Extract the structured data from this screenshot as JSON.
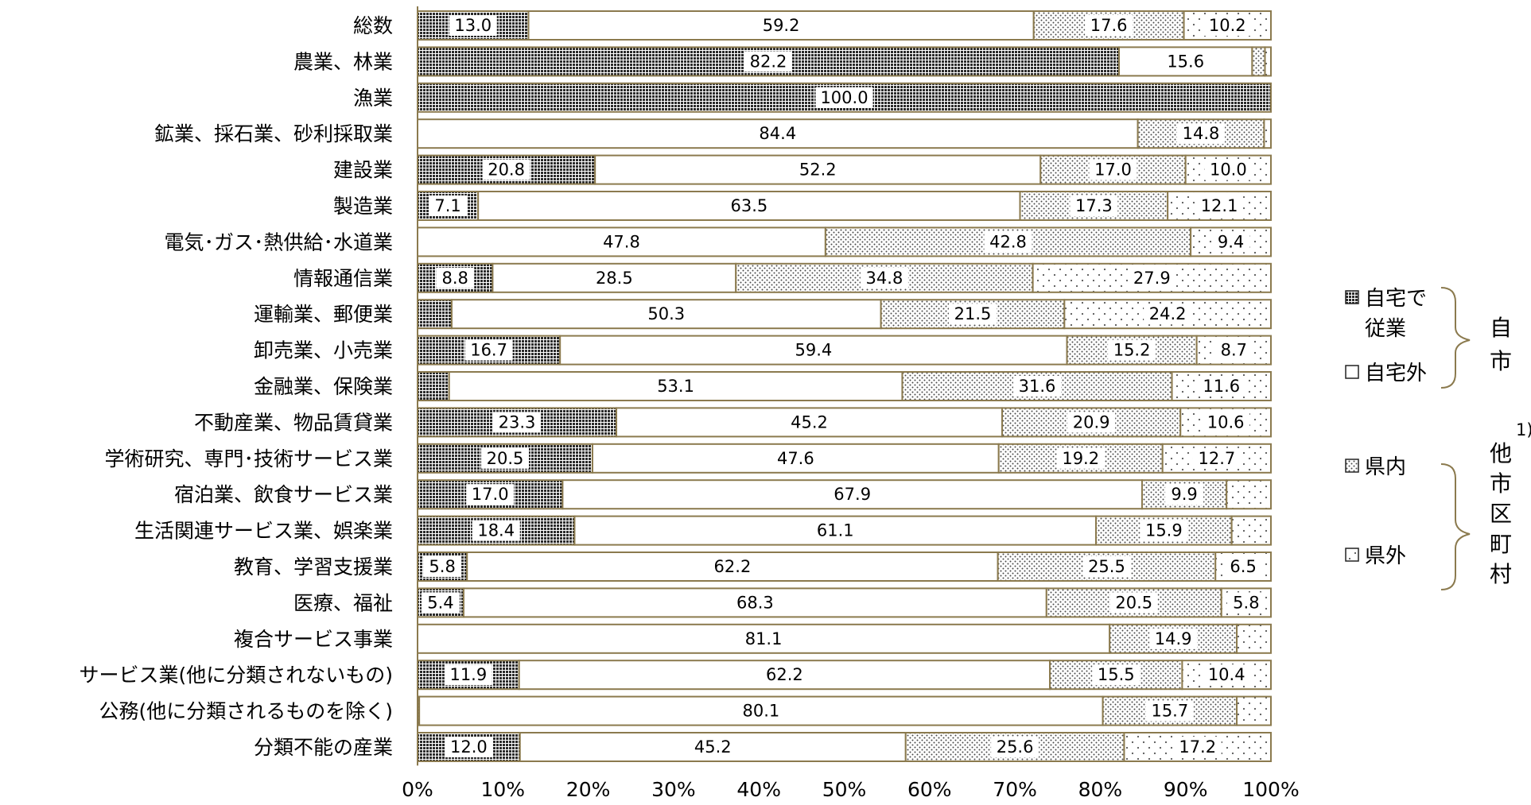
{
  "chart_data": {
    "type": "bar",
    "orientation": "horizontal",
    "stacked": "percent",
    "title": "",
    "xlabel": "",
    "ylabel": "",
    "xlim": [
      0,
      100
    ],
    "x_tick_labels": [
      "0%",
      "10%",
      "20%",
      "30%",
      "40%",
      "50%",
      "60%",
      "70%",
      "80%",
      "90%",
      "100%"
    ],
    "categories": [
      "総数",
      "農業、林業",
      "漁業",
      "鉱業、採石業、砂利採取業",
      "建設業",
      "製造業",
      "電気･ガス･熱供給･水道業",
      "情報通信業",
      "運輸業、郵便業",
      "卸売業、小売業",
      "金融業、保険業",
      "不動産業、物品賃貸業",
      "学術研究、専門･技術サービス業",
      "宿泊業、飲食サービス業",
      "生活関連サービス業、娯楽業",
      "教育、学習支援業",
      "医療、福祉",
      "複合サービス事業",
      "サービス業(他に分類されないもの)",
      "公務(他に分類されるものを除く)",
      "分類不能の産業"
    ],
    "series": [
      {
        "name": "自宅で従業",
        "pattern": "dense",
        "values": [
          13.0,
          82.2,
          100.0,
          0.0,
          20.8,
          7.1,
          0.0,
          8.8,
          4.0,
          16.7,
          3.7,
          23.3,
          20.5,
          17.0,
          18.4,
          5.8,
          5.4,
          0.0,
          11.9,
          0.2,
          12.0
        ],
        "labels": [
          "13.0",
          "82.2",
          "100.0",
          "",
          "20.8",
          "7.1",
          "",
          "8.8",
          "",
          "16.7",
          "",
          "23.3",
          "20.5",
          "17.0",
          "18.4",
          "5.8",
          "5.4",
          "",
          "11.9",
          "",
          "12.0"
        ]
      },
      {
        "name": "自宅外",
        "pattern": "blank",
        "values": [
          59.2,
          15.6,
          0.0,
          84.4,
          52.2,
          63.5,
          47.8,
          28.5,
          50.3,
          59.4,
          53.1,
          45.2,
          47.6,
          67.9,
          61.1,
          62.2,
          68.3,
          81.1,
          62.2,
          80.1,
          45.2
        ],
        "labels": [
          "59.2",
          "15.6",
          "",
          "84.4",
          "52.2",
          "63.5",
          "47.8",
          "28.5",
          "50.3",
          "59.4",
          "53.1",
          "45.2",
          "47.6",
          "67.9",
          "61.1",
          "62.2",
          "68.3",
          "81.1",
          "62.2",
          "80.1",
          "45.2"
        ]
      },
      {
        "name": "県内",
        "pattern": "medium",
        "values": [
          17.6,
          1.5,
          0.0,
          14.8,
          17.0,
          17.3,
          42.8,
          34.8,
          21.5,
          15.2,
          31.6,
          20.9,
          19.2,
          9.9,
          15.9,
          25.5,
          20.5,
          14.9,
          15.5,
          15.7,
          25.6
        ],
        "labels": [
          "17.6",
          "",
          "",
          "14.8",
          "17.0",
          "17.3",
          "42.8",
          "34.8",
          "21.5",
          "15.2",
          "31.6",
          "20.9",
          "19.2",
          "9.9",
          "15.9",
          "25.5",
          "20.5",
          "14.9",
          "15.5",
          "15.7",
          "25.6"
        ]
      },
      {
        "name": "県外",
        "pattern": "sparse",
        "values": [
          10.2,
          0.7,
          0.0,
          0.8,
          10.0,
          12.1,
          9.4,
          27.9,
          24.2,
          8.7,
          11.6,
          10.6,
          12.7,
          5.2,
          4.6,
          6.5,
          5.8,
          4.0,
          10.4,
          4.0,
          17.2
        ],
        "labels": [
          "10.2",
          "",
          "",
          "",
          "10.0",
          "12.1",
          "9.4",
          "27.9",
          "24.2",
          "8.7",
          "11.6",
          "10.6",
          "12.7",
          "",
          "",
          "6.5",
          "5.8",
          "",
          "10.4",
          "",
          "17.2"
        ]
      }
    ],
    "legend": {
      "placement": "right",
      "items": [
        {
          "label_lines": [
            "自宅で",
            "従業"
          ],
          "pattern": "dense"
        },
        {
          "label_lines": [
            "自宅外"
          ],
          "pattern": "blank"
        },
        {
          "label_lines": [
            "県内"
          ],
          "pattern": "medium"
        },
        {
          "label_lines": [
            "県外"
          ],
          "pattern": "sparse"
        }
      ],
      "groups": [
        {
          "label_chars": [
            "自",
            "市"
          ]
        },
        {
          "label_chars": [
            "他",
            "市",
            "区",
            "町",
            "村"
          ],
          "note": "1)"
        }
      ]
    },
    "colors": {
      "border": "#8b7a4e",
      "dense": "#2f2f2f",
      "blank": "#ffffff",
      "dot": "#555555"
    },
    "grid": false
  }
}
